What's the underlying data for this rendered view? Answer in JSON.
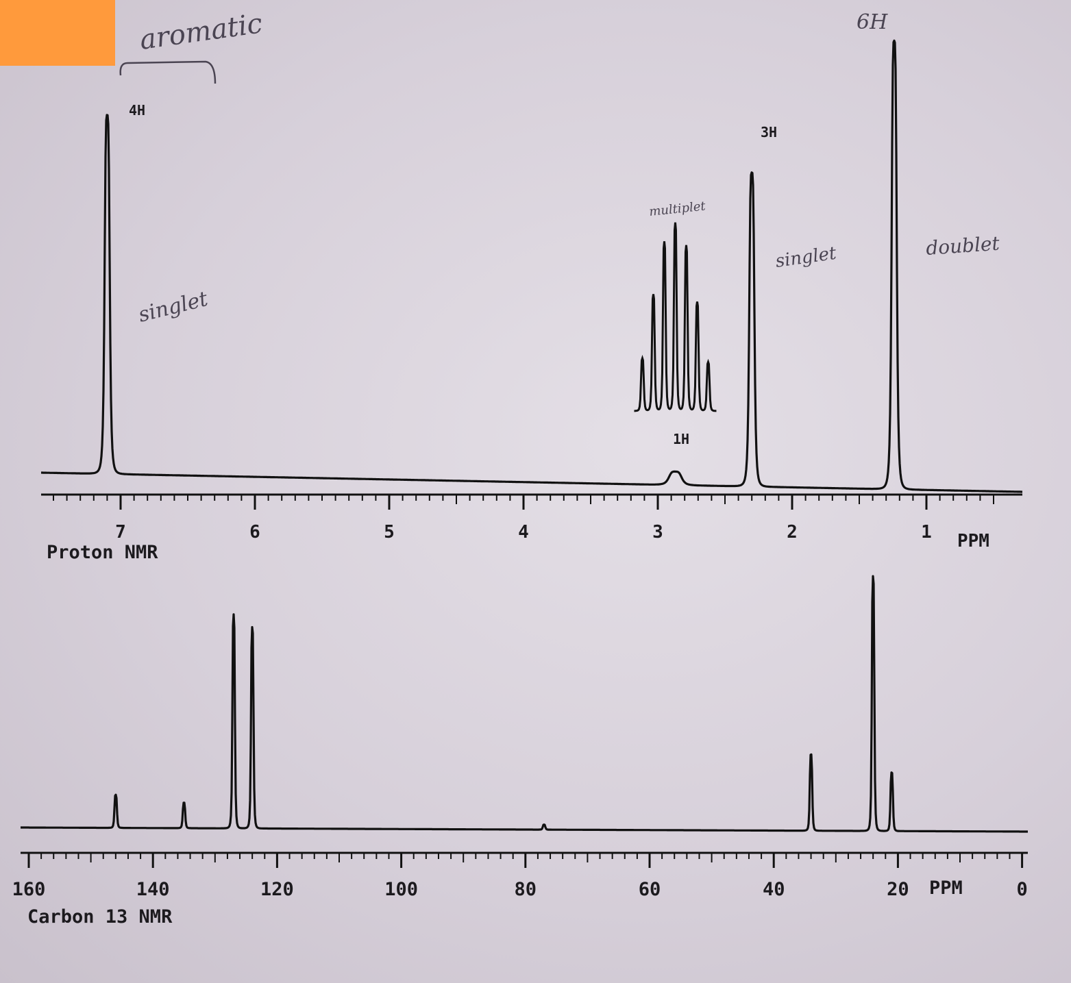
{
  "charts": {
    "proton": {
      "label": "Proton NMR",
      "unit": "PPM"
    },
    "carbon": {
      "label": "Carbon 13 NMR",
      "unit": "PPM"
    }
  },
  "annotations": {
    "aromatic": "aromatic",
    "h4": "4H",
    "singlet_aromatic": "singlet",
    "multiplet": "multiplet",
    "h1": "1H",
    "h3": "3H",
    "singlet_methyl": "singlet",
    "h6": "6H",
    "doublet": "doublet"
  },
  "chart_data": [
    {
      "type": "line",
      "title": "",
      "xlabel": "Proton NMR",
      "unit": "PPM",
      "x_reversed": true,
      "xlim": [
        7.6,
        0.5
      ],
      "tick_labels": [
        "7",
        "6",
        "5",
        "4",
        "3",
        "2",
        "1"
      ],
      "tick_values": [
        7,
        6,
        5,
        4,
        3,
        2,
        1
      ],
      "peaks": [
        {
          "ppm": 7.1,
          "rel_height": 0.8,
          "integration": "4H",
          "multiplicity": "singlet"
        },
        {
          "ppm": 2.87,
          "rel_height": 0.03,
          "integration": "1H",
          "multiplicity": "multiplet"
        },
        {
          "ppm": 2.3,
          "rel_height": 0.7,
          "integration": "3H",
          "multiplicity": "singlet"
        },
        {
          "ppm": 1.24,
          "rel_height": 1.0,
          "integration": "6H",
          "multiplicity": "doublet"
        }
      ],
      "inset": {
        "of_peak_ppm": 2.87,
        "lines": 7
      }
    },
    {
      "type": "line",
      "title": "",
      "xlabel": "Carbon 13 NMR",
      "unit": "PPM",
      "x_reversed": true,
      "xlim": [
        160,
        0
      ],
      "tick_labels": [
        "160",
        "140",
        "120",
        "100",
        "80",
        "60",
        "40",
        "20",
        "0"
      ],
      "tick_values": [
        160,
        140,
        120,
        100,
        80,
        60,
        40,
        20,
        0
      ],
      "peaks": [
        {
          "ppm": 146,
          "rel_height": 0.13
        },
        {
          "ppm": 135,
          "rel_height": 0.1
        },
        {
          "ppm": 127,
          "rel_height": 0.84
        },
        {
          "ppm": 124,
          "rel_height": 0.79
        },
        {
          "ppm": 77,
          "rel_height": 0.02
        },
        {
          "ppm": 34,
          "rel_height": 0.3
        },
        {
          "ppm": 24,
          "rel_height": 1.0
        },
        {
          "ppm": 21,
          "rel_height": 0.23
        }
      ]
    }
  ]
}
